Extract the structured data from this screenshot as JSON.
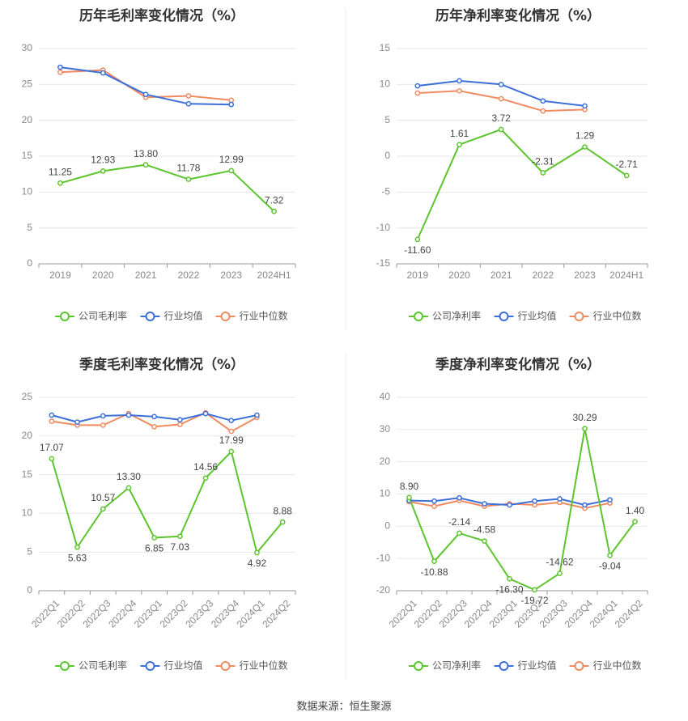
{
  "colors": {
    "company": "#5cc52e",
    "industry_avg": "#3c6fd8",
    "industry_median": "#f08a60",
    "grid": "#e6e6e6",
    "axis": "#666666",
    "title": "#333333",
    "label": "#444444"
  },
  "source": "数据来源：恒生聚源",
  "chart_data": [
    {
      "id": "annual-gross",
      "type": "line",
      "title": "历年毛利率变化情况（%）",
      "categories": [
        "2019",
        "2020",
        "2021",
        "2022",
        "2023",
        "2024H1"
      ],
      "ylim": [
        0,
        30
      ],
      "yticks": [
        0,
        5,
        10,
        15,
        20,
        25,
        30
      ],
      "rotate_x": false,
      "series": [
        {
          "name": "公司毛利率",
          "key": "company",
          "labels": true,
          "values": [
            11.25,
            12.93,
            13.8,
            11.78,
            12.99,
            7.32
          ],
          "label_text": [
            "11.25",
            "12.93",
            "13.80",
            "11.78",
            "12.99",
            "7.32"
          ]
        },
        {
          "name": "行业均值",
          "key": "industry_avg",
          "labels": false,
          "values": [
            27.4,
            26.6,
            23.6,
            22.3,
            22.2,
            null
          ]
        },
        {
          "name": "行业中位数",
          "key": "industry_median",
          "labels": false,
          "values": [
            26.7,
            27.0,
            23.2,
            23.4,
            22.8,
            null
          ]
        }
      ]
    },
    {
      "id": "annual-net",
      "type": "line",
      "title": "历年净利率变化情况（%）",
      "categories": [
        "2019",
        "2020",
        "2021",
        "2022",
        "2023",
        "2024H1"
      ],
      "ylim": [
        -15,
        15
      ],
      "yticks": [
        -15,
        -10,
        -5,
        0,
        5,
        10,
        15
      ],
      "rotate_x": false,
      "series": [
        {
          "name": "公司净利率",
          "key": "company",
          "labels": true,
          "values": [
            -11.6,
            1.61,
            3.72,
            -2.31,
            1.29,
            -2.71
          ],
          "label_text": [
            "-11.60",
            "1.61",
            "3.72",
            "-2.31",
            "1.29",
            "-2.71"
          ]
        },
        {
          "name": "行业均值",
          "key": "industry_avg",
          "labels": false,
          "values": [
            9.8,
            10.5,
            10.0,
            7.7,
            7.0,
            null
          ]
        },
        {
          "name": "行业中位数",
          "key": "industry_median",
          "labels": false,
          "values": [
            8.8,
            9.1,
            8.0,
            6.3,
            6.5,
            null
          ]
        }
      ]
    },
    {
      "id": "quarterly-gross",
      "type": "line",
      "title": "季度毛利率变化情况（%）",
      "categories": [
        "2022Q1",
        "2022Q2",
        "2022Q3",
        "2022Q4",
        "2023Q1",
        "2023Q2",
        "2023Q3",
        "2023Q4",
        "2024Q1",
        "2024Q2"
      ],
      "ylim": [
        0,
        25
      ],
      "yticks": [
        0,
        5,
        10,
        15,
        20,
        25
      ],
      "rotate_x": true,
      "series": [
        {
          "name": "公司毛利率",
          "key": "company",
          "labels": true,
          "values": [
            17.07,
            5.63,
            10.57,
            13.3,
            6.85,
            7.03,
            14.56,
            17.99,
            4.92,
            8.88
          ],
          "label_text": [
            "17.07",
            "5.63",
            "10.57",
            "13.30",
            "6.85",
            "7.03",
            "14.56",
            "17.99",
            "4.92",
            "8.88"
          ]
        },
        {
          "name": "行业均值",
          "key": "industry_avg",
          "labels": false,
          "values": [
            22.7,
            21.8,
            22.6,
            22.7,
            22.5,
            22.1,
            22.9,
            22.0,
            22.7,
            null
          ]
        },
        {
          "name": "行业中位数",
          "key": "industry_median",
          "labels": false,
          "values": [
            21.9,
            21.4,
            21.4,
            22.9,
            21.2,
            21.5,
            23.0,
            20.6,
            22.4,
            null
          ]
        }
      ]
    },
    {
      "id": "quarterly-net",
      "type": "line",
      "title": "季度净利率变化情况（%）",
      "categories": [
        "2022Q1",
        "2022Q2",
        "2022Q3",
        "2022Q4",
        "2023Q1",
        "2023Q2",
        "2023Q3",
        "2023Q4",
        "2024Q1",
        "2024Q2"
      ],
      "ylim": [
        -20,
        40
      ],
      "yticks": [
        -20,
        -10,
        0,
        10,
        20,
        30,
        40
      ],
      "rotate_x": true,
      "series": [
        {
          "name": "公司净利率",
          "key": "company",
          "labels": true,
          "values": [
            8.9,
            -10.88,
            -2.14,
            -4.58,
            -16.3,
            -19.72,
            -14.62,
            30.29,
            -9.04,
            1.4
          ],
          "label_text": [
            "8.90",
            "-10.88",
            "-2.14",
            "-4.58",
            "-16.30",
            "-19.72",
            "-14.62",
            "30.29",
            "-9.04",
            "1.40"
          ]
        },
        {
          "name": "行业均值",
          "key": "industry_avg",
          "labels": false,
          "values": [
            8.0,
            7.8,
            8.8,
            7.0,
            6.6,
            7.8,
            8.5,
            6.6,
            8.2,
            null
          ]
        },
        {
          "name": "行业中位数",
          "key": "industry_median",
          "labels": false,
          "values": [
            7.6,
            6.2,
            8.0,
            6.2,
            7.0,
            6.6,
            7.4,
            5.6,
            7.2,
            null
          ]
        }
      ]
    }
  ]
}
